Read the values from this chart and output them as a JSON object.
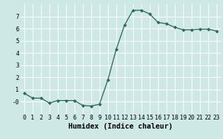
{
  "x": [
    0,
    1,
    2,
    3,
    4,
    5,
    6,
    7,
    8,
    9,
    10,
    11,
    12,
    13,
    14,
    15,
    16,
    17,
    18,
    19,
    20,
    21,
    22,
    23
  ],
  "y": [
    0.7,
    0.3,
    0.3,
    -0.1,
    0.1,
    0.1,
    0.1,
    -0.3,
    -0.35,
    -0.2,
    1.8,
    4.3,
    6.3,
    7.5,
    7.5,
    7.2,
    6.5,
    6.4,
    6.1,
    5.9,
    5.9,
    5.95,
    5.95,
    5.8
  ],
  "line_color": "#2d6b5e",
  "marker": "D",
  "marker_size": 2.2,
  "bg_color": "#cde8e5",
  "grid_color": "#b0d4d0",
  "xlabel": "Humidex (Indice chaleur)",
  "xlabel_fontsize": 7.5,
  "xlim": [
    -0.5,
    23.5
  ],
  "ylim": [
    -1.0,
    8.0
  ],
  "yticks": [
    0,
    1,
    2,
    3,
    4,
    5,
    6,
    7
  ],
  "ytick_labels": [
    "-0",
    "1",
    "2",
    "3",
    "4",
    "5",
    "6",
    "7"
  ],
  "xtick_labels": [
    "0",
    "1",
    "2",
    "3",
    "4",
    "5",
    "6",
    "7",
    "8",
    "9",
    "10",
    "11",
    "12",
    "13",
    "14",
    "15",
    "16",
    "17",
    "18",
    "19",
    "20",
    "21",
    "22",
    "23"
  ],
  "tick_fontsize": 6.0,
  "line_width": 1.0
}
